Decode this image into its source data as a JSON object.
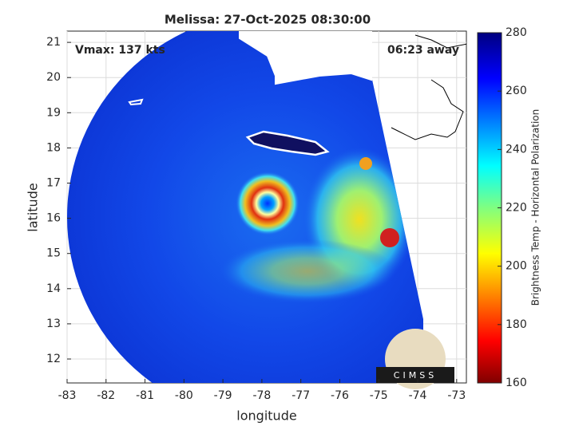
{
  "chart_data": {
    "type": "map",
    "title": "Melissa: 27-Oct-2025 08:30:00",
    "xlabel": "longitude",
    "ylabel": "latitude",
    "annotations": [
      "Vmax: 137 kts",
      "06:23 away"
    ],
    "xlim": [
      -83,
      -72.75
    ],
    "ylim": [
      11.32,
      21.32
    ],
    "xticks": [
      -83,
      -82,
      -81,
      -80,
      -79,
      -78,
      -77,
      -76,
      -75,
      -74,
      -73
    ],
    "yticks": [
      12,
      13,
      14,
      15,
      16,
      17,
      18,
      19,
      20,
      21
    ],
    "grid": true,
    "colorbar": {
      "label": "Brightness Temp - Horizontal Polarization",
      "lim": [
        160,
        280
      ],
      "ticks": [
        160,
        180,
        200,
        220,
        240,
        260,
        280
      ]
    },
    "logo": "CIMSS"
  }
}
